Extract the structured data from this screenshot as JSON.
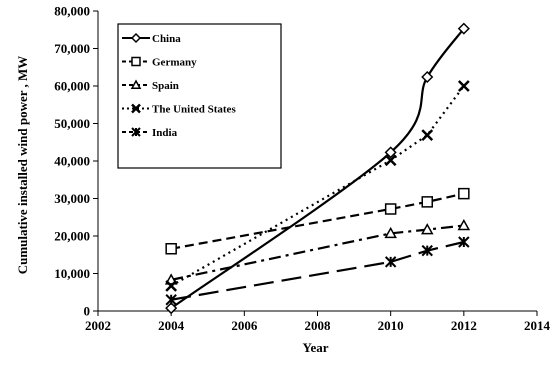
{
  "chart_data": {
    "type": "line",
    "title": "",
    "xlabel": "Year",
    "ylabel": "Cumulative installed wind power , MW",
    "xlim": [
      2002,
      2014
    ],
    "ylim": [
      0,
      80000
    ],
    "x_ticks": [
      2002,
      2004,
      2006,
      2008,
      2010,
      2012,
      2014
    ],
    "y_ticks": [
      0,
      10000,
      20000,
      30000,
      40000,
      50000,
      60000,
      70000,
      80000
    ],
    "x_tick_labels": [
      "2002",
      "2004",
      "2006",
      "2008",
      "2010",
      "2012",
      "2014"
    ],
    "y_tick_labels": [
      "0",
      "10,000",
      "20,000",
      "30,000",
      "40,000",
      "50,000",
      "60,000",
      "70,000",
      "80,000"
    ],
    "grid": false,
    "legend_position": "top-left",
    "series": [
      {
        "name": "China",
        "x": [
          2004,
          2010,
          2011,
          2012
        ],
        "y": [
          760,
          42300,
          62400,
          75300
        ],
        "marker": "diamond",
        "line_style": "solid",
        "color": "#000000"
      },
      {
        "name": "Germany",
        "x": [
          2004,
          2010,
          2011,
          2012
        ],
        "y": [
          16600,
          27200,
          29100,
          31300
        ],
        "marker": "square",
        "line_style": "dashed",
        "color": "#000000"
      },
      {
        "name": "Spain",
        "x": [
          2004,
          2010,
          2011,
          2012
        ],
        "y": [
          8300,
          20700,
          21700,
          22800
        ],
        "marker": "triangle",
        "line_style": "dash-dot",
        "color": "#000000"
      },
      {
        "name": "The United States",
        "x": [
          2004,
          2010,
          2011,
          2012
        ],
        "y": [
          6700,
          40200,
          46900,
          60000
        ],
        "marker": "x",
        "line_style": "dotted",
        "color": "#000000"
      },
      {
        "name": "India",
        "x": [
          2004,
          2010,
          2011,
          2012
        ],
        "y": [
          3000,
          13100,
          16100,
          18400
        ],
        "marker": "star",
        "line_style": "long-dash",
        "color": "#000000"
      }
    ]
  }
}
